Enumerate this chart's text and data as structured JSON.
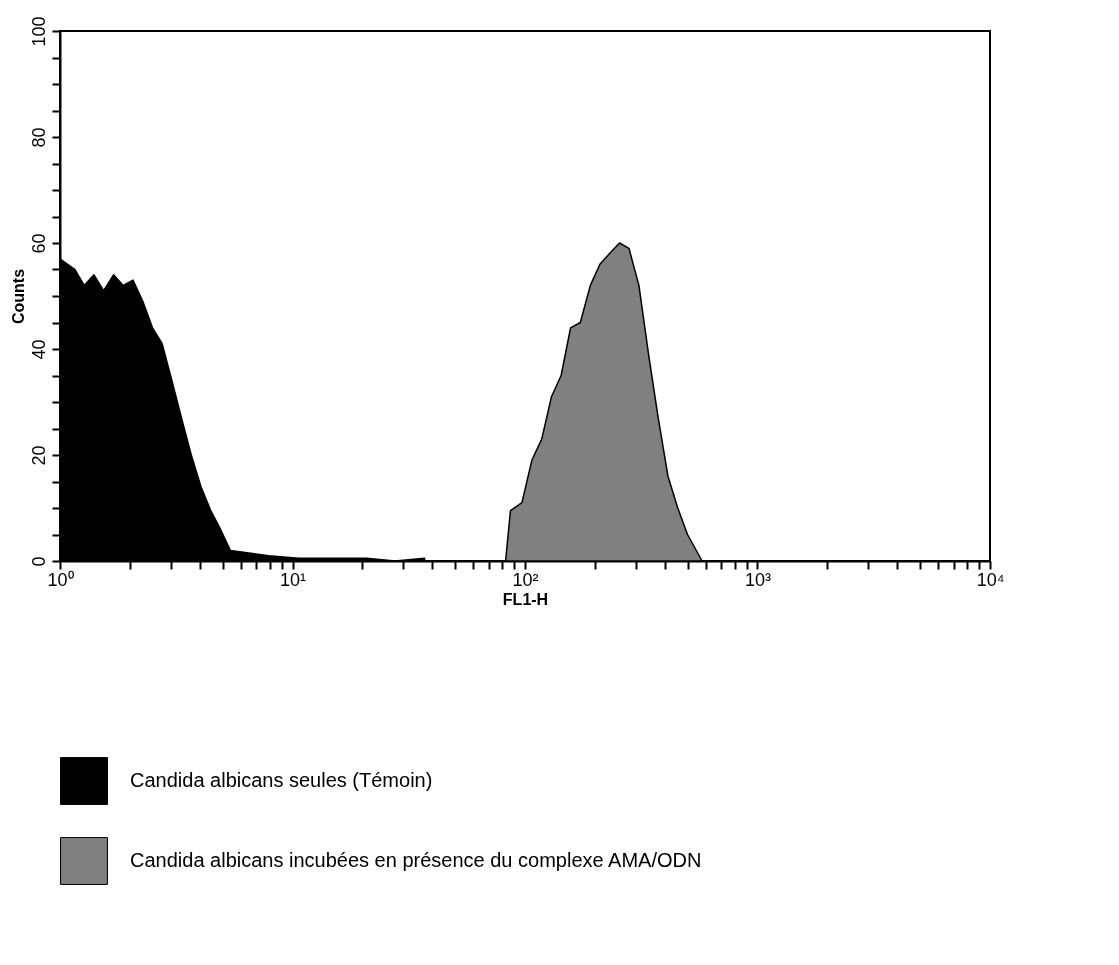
{
  "chart_data": {
    "type": "area",
    "xlabel": "FL1-H",
    "ylabel": "Counts",
    "log": "x",
    "legend": "bottom",
    "grid": false,
    "xlim": [
      1,
      10000
    ],
    "ylim": [
      0,
      100
    ],
    "xticks": [
      {
        "value": 1,
        "label": "10⁰"
      },
      {
        "value": 2,
        "label": null
      },
      {
        "value": 3,
        "label": null
      },
      {
        "value": 4,
        "label": null
      },
      {
        "value": 5,
        "label": null
      },
      {
        "value": 6,
        "label": null
      },
      {
        "value": 7,
        "label": null
      },
      {
        "value": 8,
        "label": null
      },
      {
        "value": 9,
        "label": null
      },
      {
        "value": 10,
        "label": "10¹"
      },
      {
        "value": 20,
        "label": null
      },
      {
        "value": 30,
        "label": null
      },
      {
        "value": 40,
        "label": null
      },
      {
        "value": 50,
        "label": null
      },
      {
        "value": 60,
        "label": null
      },
      {
        "value": 70,
        "label": null
      },
      {
        "value": 80,
        "label": null
      },
      {
        "value": 90,
        "label": null
      },
      {
        "value": 100,
        "label": "10²"
      },
      {
        "value": 200,
        "label": null
      },
      {
        "value": 300,
        "label": null
      },
      {
        "value": 400,
        "label": null
      },
      {
        "value": 500,
        "label": null
      },
      {
        "value": 600,
        "label": null
      },
      {
        "value": 700,
        "label": null
      },
      {
        "value": 800,
        "label": null
      },
      {
        "value": 900,
        "label": null
      },
      {
        "value": 1000,
        "label": "10³"
      },
      {
        "value": 2000,
        "label": null
      },
      {
        "value": 3000,
        "label": null
      },
      {
        "value": 4000,
        "label": null
      },
      {
        "value": 5000,
        "label": null
      },
      {
        "value": 6000,
        "label": null
      },
      {
        "value": 7000,
        "label": null
      },
      {
        "value": 8000,
        "label": null
      },
      {
        "value": 9000,
        "label": null
      },
      {
        "value": 10000,
        "label": "10⁴"
      }
    ],
    "yticks": [
      0,
      {
        "value": 5,
        "label": null
      },
      {
        "value": 10,
        "label": null
      },
      {
        "value": 15,
        "label": null
      },
      20,
      {
        "value": 25,
        "label": null
      },
      {
        "value": 30,
        "label": null
      },
      {
        "value": 35,
        "label": null
      },
      40,
      {
        "value": 45,
        "label": null
      },
      {
        "value": 50,
        "label": null
      },
      {
        "value": 55,
        "label": null
      },
      60,
      {
        "value": 65,
        "label": null
      },
      {
        "value": 70,
        "label": null
      },
      {
        "value": 75,
        "label": null
      },
      80,
      {
        "value": 85,
        "label": null
      },
      {
        "value": 90,
        "label": null
      },
      {
        "value": 95,
        "label": null
      },
      100
    ],
    "series": [
      {
        "name": "Candida albicans seules (Témoin)",
        "color": "#000000",
        "x": [
          1,
          1.16,
          1.27,
          1.4,
          1.54,
          1.7,
          1.87,
          2.06,
          2.27,
          2.5,
          2.75,
          3.03,
          3.33,
          3.67,
          4.04,
          4.45,
          4.9,
          5.4,
          6.5,
          7.9,
          10.6,
          20.8,
          27.6,
          37
        ],
        "values": [
          57,
          55,
          52,
          54,
          51,
          54,
          52,
          53,
          49,
          44,
          41,
          34,
          27,
          20,
          14,
          9.5,
          6,
          2,
          1.5,
          1,
          0.5,
          0.5,
          0,
          0.5
        ]
      },
      {
        "name": "Candida albicans incubées en présence du complexe AMA/ODN",
        "color": "#808080",
        "x": [
          82.5,
          86.6,
          97,
          107,
          118,
          130,
          143,
          157,
          173,
          191,
          210,
          231,
          255,
          280,
          309,
          340,
          374,
          412,
          454,
          500,
          578
        ],
        "values": [
          0,
          9.5,
          11,
          19,
          23,
          31,
          35,
          44,
          45,
          52,
          56,
          58,
          60,
          59,
          52,
          39,
          27,
          16,
          10,
          5,
          0
        ]
      }
    ]
  }
}
